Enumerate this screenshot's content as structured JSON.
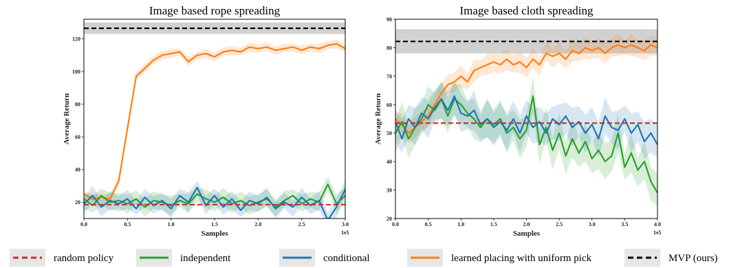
{
  "legend": [
    {
      "label": "random policy",
      "color": "#d62728",
      "dash": true
    },
    {
      "label": "independent",
      "color": "#2ca02c",
      "dash": false
    },
    {
      "label": "conditional",
      "color": "#1f77b4",
      "dash": false
    },
    {
      "label": "learned placing with uniform pick",
      "color": "#ff7f0e",
      "dash": false
    },
    {
      "label": "MVP (ours)",
      "color": "#000000",
      "dash": true
    }
  ],
  "chart_data": [
    {
      "type": "line",
      "title": "Image based rope spreading",
      "xlabel": "Samples",
      "ylabel": "Average Return",
      "x_scale_label": "1e5",
      "xlim": [
        0,
        3.0
      ],
      "ylim": [
        10,
        132
      ],
      "xticks": [
        "0.0",
        "0.5",
        "1.0",
        "1.5",
        "2.0",
        "2.5",
        "3.0"
      ],
      "yticks": [
        "20",
        "40",
        "60",
        "80",
        "100",
        "120"
      ],
      "grid": false,
      "series": [
        {
          "name": "MVP (ours)",
          "color": "#000000",
          "style": "dashed",
          "band": [
            123,
            130
          ],
          "x": [
            0,
            3.0
          ],
          "y": [
            126.5,
            126.5
          ]
        },
        {
          "name": "random policy",
          "color": "#d62728",
          "style": "dashed",
          "x": [
            0,
            3.0
          ],
          "y": [
            18.5,
            18.5
          ]
        },
        {
          "name": "learned placing with uniform pick",
          "color": "#ff7f0e",
          "style": "solid",
          "band_width": 3,
          "x": [
            0,
            0.1,
            0.2,
            0.3,
            0.4,
            0.5,
            0.6,
            0.7,
            0.8,
            0.9,
            1.0,
            1.1,
            1.2,
            1.3,
            1.4,
            1.5,
            1.6,
            1.7,
            1.8,
            1.9,
            2.0,
            2.1,
            2.2,
            2.3,
            2.4,
            2.5,
            2.6,
            2.7,
            2.8,
            2.9,
            3.0
          ],
          "y": [
            25,
            22,
            23,
            22,
            33,
            65,
            97,
            102,
            107,
            110,
            111,
            112,
            106,
            110,
            111,
            109,
            112,
            113,
            112,
            115,
            114,
            115,
            113,
            114,
            115,
            113,
            115,
            114,
            116,
            117,
            114
          ]
        },
        {
          "name": "independent",
          "color": "#2ca02c",
          "style": "solid",
          "band_width": 6,
          "x": [
            0,
            0.1,
            0.2,
            0.3,
            0.4,
            0.5,
            0.6,
            0.7,
            0.8,
            0.9,
            1.0,
            1.1,
            1.2,
            1.3,
            1.4,
            1.5,
            1.6,
            1.7,
            1.8,
            1.9,
            2.0,
            2.1,
            2.2,
            2.3,
            2.4,
            2.5,
            2.6,
            2.7,
            2.8,
            2.9,
            3.0
          ],
          "y": [
            22,
            18,
            24,
            20,
            21,
            19,
            22,
            17,
            21,
            20,
            18,
            21,
            19,
            25,
            22,
            20,
            23,
            19,
            21,
            18,
            20,
            22,
            17,
            21,
            24,
            19,
            22,
            20,
            31,
            19,
            24
          ]
        },
        {
          "name": "conditional",
          "color": "#1f77b4",
          "style": "solid",
          "band_width": 6,
          "x": [
            0,
            0.1,
            0.2,
            0.3,
            0.4,
            0.5,
            0.6,
            0.7,
            0.8,
            0.9,
            1.0,
            1.1,
            1.2,
            1.3,
            1.4,
            1.5,
            1.6,
            1.7,
            1.8,
            1.9,
            2.0,
            2.1,
            2.2,
            2.3,
            2.4,
            2.5,
            2.6,
            2.7,
            2.8,
            2.9,
            3.0
          ],
          "y": [
            19,
            24,
            17,
            21,
            19,
            22,
            16,
            23,
            18,
            21,
            16,
            24,
            20,
            29,
            18,
            24,
            17,
            22,
            15,
            21,
            19,
            23,
            16,
            20,
            17,
            23,
            18,
            21,
            9,
            17,
            28
          ]
        }
      ]
    },
    {
      "type": "line",
      "title": "Image based cloth spreading",
      "xlabel": "Samples",
      "ylabel": "Average Return",
      "x_scale_label": "1e5",
      "xlim": [
        0,
        4.0
      ],
      "ylim": [
        20,
        90
      ],
      "xticks": [
        "0.0",
        "0.5",
        "1.0",
        "1.5",
        "2.0",
        "2.5",
        "3.0",
        "3.5",
        "4.0"
      ],
      "yticks": [
        "20",
        "30",
        "40",
        "50",
        "60",
        "70",
        "80",
        "90"
      ],
      "grid": false,
      "series": [
        {
          "name": "MVP (ours)",
          "color": "#000000",
          "style": "dashed",
          "band": [
            78,
            86.5
          ],
          "x": [
            0,
            4.0
          ],
          "y": [
            82.2,
            82.2
          ]
        },
        {
          "name": "random policy",
          "color": "#d62728",
          "style": "dashed",
          "x": [
            0,
            4.0
          ],
          "y": [
            53.5,
            53.5
          ]
        },
        {
          "name": "learned placing with uniform pick",
          "color": "#ff7f0e",
          "style": "solid",
          "band_width": 4,
          "x": [
            0,
            0.1,
            0.2,
            0.3,
            0.4,
            0.5,
            0.6,
            0.7,
            0.8,
            0.9,
            1.0,
            1.1,
            1.2,
            1.3,
            1.4,
            1.5,
            1.6,
            1.7,
            1.8,
            1.9,
            2.0,
            2.1,
            2.2,
            2.3,
            2.4,
            2.5,
            2.6,
            2.7,
            2.8,
            2.9,
            3.0,
            3.1,
            3.2,
            3.3,
            3.4,
            3.5,
            3.6,
            3.7,
            3.8,
            3.9,
            4.0
          ],
          "y": [
            55,
            53,
            50,
            52,
            54,
            56,
            60,
            64,
            67,
            68,
            70,
            68,
            72,
            73,
            74,
            75,
            74,
            76,
            74,
            75,
            73,
            76,
            74,
            78,
            77,
            78,
            76,
            79,
            78,
            80,
            79,
            80,
            78,
            80,
            81,
            80,
            81,
            80,
            79,
            81,
            80
          ]
        },
        {
          "name": "independent",
          "color": "#2ca02c",
          "style": "solid",
          "band_width": 7,
          "x": [
            0,
            0.1,
            0.2,
            0.3,
            0.4,
            0.5,
            0.6,
            0.7,
            0.8,
            0.9,
            1.0,
            1.1,
            1.2,
            1.3,
            1.4,
            1.5,
            1.6,
            1.7,
            1.8,
            1.9,
            2.0,
            2.1,
            2.2,
            2.3,
            2.4,
            2.5,
            2.6,
            2.7,
            2.8,
            2.9,
            3.0,
            3.1,
            3.2,
            3.3,
            3.4,
            3.5,
            3.6,
            3.7,
            3.8,
            3.9,
            4.0
          ],
          "y": [
            50,
            54,
            48,
            52,
            55,
            60,
            58,
            62,
            56,
            62,
            60,
            57,
            55,
            52,
            55,
            53,
            55,
            50,
            52,
            48,
            51,
            63,
            46,
            52,
            44,
            50,
            42,
            48,
            43,
            47,
            41,
            44,
            40,
            42,
            50,
            38,
            43,
            37,
            40,
            33,
            29
          ]
        },
        {
          "name": "conditional",
          "color": "#1f77b4",
          "style": "solid",
          "band_width": 7,
          "x": [
            0,
            0.1,
            0.2,
            0.3,
            0.4,
            0.5,
            0.6,
            0.7,
            0.8,
            0.9,
            1.0,
            1.1,
            1.2,
            1.3,
            1.4,
            1.5,
            1.6,
            1.7,
            1.8,
            1.9,
            2.0,
            2.1,
            2.2,
            2.3,
            2.4,
            2.5,
            2.6,
            2.7,
            2.8,
            2.9,
            3.0,
            3.1,
            3.2,
            3.3,
            3.4,
            3.5,
            3.6,
            3.7,
            3.8,
            3.9,
            4.0
          ],
          "y": [
            54,
            48,
            55,
            52,
            57,
            55,
            59,
            62,
            58,
            63,
            57,
            56,
            58,
            53,
            55,
            52,
            54,
            51,
            55,
            50,
            56,
            52,
            54,
            50,
            55,
            53,
            56,
            52,
            54,
            50,
            53,
            48,
            56,
            52,
            51,
            55,
            50,
            53,
            47,
            50,
            46
          ]
        }
      ]
    }
  ]
}
